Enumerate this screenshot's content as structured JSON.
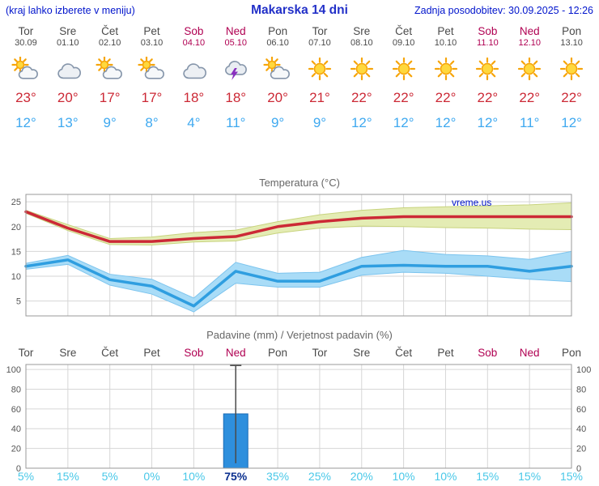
{
  "header": {
    "note": "(kraj lahko izberete v meniju)",
    "title": "Makarska 14 dni",
    "updated": "Zadnja posodobitev: 30.09.2025 - 12:26"
  },
  "watermark": "vreme.us",
  "colors": {
    "header_blue": "#0014cc",
    "title_blue": "#2230c8",
    "day_gray": "#4a4a4a",
    "weekend": "#b00052",
    "tmax": "#cc2936",
    "tmin": "#3fa9f0",
    "prob": "#49c8e8",
    "prob_high": "#0a2f8f"
  },
  "days": [
    {
      "name": "Tor",
      "date": "30.09",
      "weekend": false,
      "icon": "partly-cloudy",
      "tmax": "23°",
      "tmin": "12°"
    },
    {
      "name": "Sre",
      "date": "01.10",
      "weekend": false,
      "icon": "cloudy",
      "tmax": "20°",
      "tmin": "13°"
    },
    {
      "name": "Čet",
      "date": "02.10",
      "weekend": false,
      "icon": "partly-cloudy",
      "tmax": "17°",
      "tmin": "9°"
    },
    {
      "name": "Pet",
      "date": "03.10",
      "weekend": false,
      "icon": "partly-cloudy",
      "tmax": "17°",
      "tmin": "8°"
    },
    {
      "name": "Sob",
      "date": "04.10",
      "weekend": true,
      "icon": "cloudy",
      "tmax": "18°",
      "tmin": "4°"
    },
    {
      "name": "Ned",
      "date": "05.10",
      "weekend": true,
      "icon": "thunderstorm",
      "tmax": "18°",
      "tmin": "11°"
    },
    {
      "name": "Pon",
      "date": "06.10",
      "weekend": false,
      "icon": "partly-cloudy",
      "tmax": "20°",
      "tmin": "9°"
    },
    {
      "name": "Tor",
      "date": "07.10",
      "weekend": false,
      "icon": "sunny",
      "tmax": "21°",
      "tmin": "9°"
    },
    {
      "name": "Sre",
      "date": "08.10",
      "weekend": false,
      "icon": "sunny",
      "tmax": "22°",
      "tmin": "12°"
    },
    {
      "name": "Čet",
      "date": "09.10",
      "weekend": false,
      "icon": "sunny",
      "tmax": "22°",
      "tmin": "12°"
    },
    {
      "name": "Pet",
      "date": "10.10",
      "weekend": false,
      "icon": "sunny",
      "tmax": "22°",
      "tmin": "12°"
    },
    {
      "name": "Sob",
      "date": "11.10",
      "weekend": true,
      "icon": "sunny",
      "tmax": "22°",
      "tmin": "12°"
    },
    {
      "name": "Ned",
      "date": "12.10",
      "weekend": true,
      "icon": "sunny",
      "tmax": "22°",
      "tmin": "11°"
    },
    {
      "name": "Pon",
      "date": "13.10",
      "weekend": false,
      "icon": "sunny",
      "tmax": "22°",
      "tmin": "12°"
    }
  ],
  "chart_data": [
    {
      "type": "line",
      "title": "Temperatura (°C)",
      "categories": [
        "Tor",
        "Sre",
        "Čet",
        "Pet",
        "Sob",
        "Ned",
        "Pon",
        "Tor",
        "Sre",
        "Čet",
        "Pet",
        "Sob",
        "Ned",
        "Pon"
      ],
      "yticks": [
        5,
        10,
        15,
        20,
        25
      ],
      "ylim": [
        2,
        26.5
      ],
      "grid": true,
      "series": [
        {
          "name": "min-temp",
          "color": "#2f9ee0",
          "width": 3.5,
          "values": [
            12,
            13.3,
            9.3,
            8,
            4,
            11,
            9,
            9,
            12,
            12.2,
            12,
            12,
            11,
            12
          ]
        },
        {
          "name": "max-temp",
          "color": "#cc2936",
          "width": 3.5,
          "values": [
            23,
            19.7,
            17,
            17,
            17.6,
            18,
            20,
            21,
            21.7,
            22,
            22,
            22,
            22,
            22
          ]
        }
      ],
      "bands": [
        {
          "name": "max-range",
          "fill": "#e4ecb4",
          "stroke": "#c8d37e",
          "upper": [
            23.3,
            20.4,
            17.6,
            17.9,
            18.8,
            19.3,
            21,
            22.4,
            23.3,
            23.8,
            24,
            24.2,
            24.4,
            24.8
          ],
          "lower": [
            22.7,
            19.2,
            16.4,
            16.3,
            16.9,
            17.1,
            18.7,
            19.7,
            20.1,
            20,
            19.8,
            19.7,
            19.5,
            19.4
          ]
        },
        {
          "name": "min-range",
          "fill": "#a9dcf7",
          "stroke": "#7cc4ee",
          "upper": [
            12.6,
            14.2,
            10.4,
            9.4,
            5.6,
            12.8,
            10.6,
            10.8,
            13.8,
            15.2,
            14.4,
            14.1,
            13.4,
            15
          ],
          "lower": [
            11.4,
            12.4,
            8.2,
            6.4,
            2.8,
            8.6,
            7.8,
            7.8,
            10.2,
            10.8,
            10.6,
            10,
            9.4,
            8.9
          ]
        }
      ]
    },
    {
      "type": "bar",
      "title": "Padavine (mm) / Verjetnost padavin (%)",
      "categories": [
        "Tor",
        "Sre",
        "Čet",
        "Pet",
        "Sob",
        "Ned",
        "Pon",
        "Tor",
        "Sre",
        "Čet",
        "Pet",
        "Sob",
        "Ned",
        "Pon"
      ],
      "values": [
        0,
        0,
        0,
        0,
        0,
        55,
        0,
        0,
        0,
        0,
        0,
        0,
        0,
        0
      ],
      "bar_color": "#2e8fdd",
      "bar_stroke": "#1a6ab5",
      "yticks": [
        0,
        20,
        40,
        60,
        80,
        100
      ],
      "ylim": [
        0,
        105
      ],
      "grid": true,
      "whisker": {
        "day_index": 5,
        "low": 5,
        "high": 104
      },
      "probabilities": [
        "5%",
        "15%",
        "5%",
        "0%",
        "10%",
        "75%",
        "35%",
        "25%",
        "20%",
        "10%",
        "10%",
        "15%",
        "15%",
        "15%"
      ],
      "highlight_index": 5
    }
  ]
}
